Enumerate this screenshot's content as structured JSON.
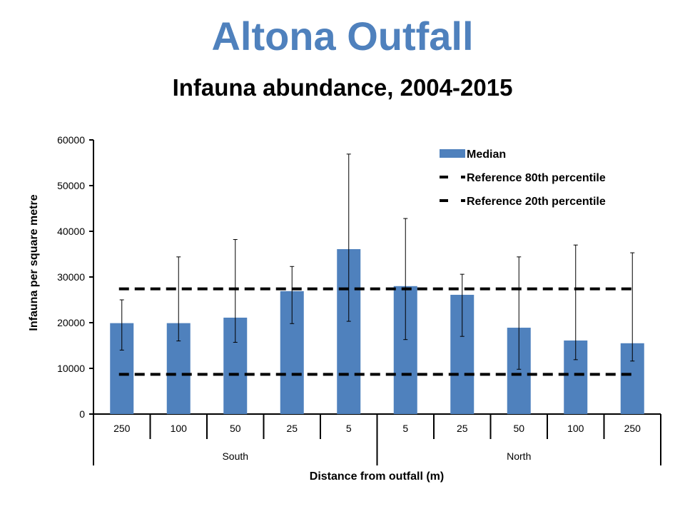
{
  "page": {
    "title": "Altona Outfall",
    "subtitle": "Infauna abundance, 2004-2015"
  },
  "chart_data": {
    "type": "bar",
    "categories": [
      "250",
      "100",
      "50",
      "25",
      "5",
      "5",
      "25",
      "50",
      "100",
      "250"
    ],
    "groups": [
      {
        "label": "South",
        "start": 0,
        "end": 4
      },
      {
        "label": "North",
        "start": 5,
        "end": 9
      }
    ],
    "series": [
      {
        "name": "Median",
        "values": [
          19900,
          19900,
          21100,
          26900,
          36100,
          28000,
          26100,
          18900,
          16100,
          15500
        ],
        "error_low": [
          14000,
          16000,
          15700,
          19800,
          20300,
          16300,
          17000,
          9800,
          11900,
          11600
        ],
        "error_high": [
          25000,
          34400,
          38200,
          32300,
          56900,
          42800,
          30600,
          34400,
          37000,
          35300
        ],
        "color": "#4f81bd"
      }
    ],
    "reference_lines": [
      {
        "name": "Reference 80th percentile",
        "value": 27400,
        "style": "dashed",
        "color": "#000000"
      },
      {
        "name": "Reference 20th percentile",
        "value": 8700,
        "style": "dashed",
        "color": "#000000"
      }
    ],
    "xlabel": "Distance from outfall (m)",
    "ylabel": "Infauna per square metre",
    "ylim": [
      0,
      60000
    ],
    "yticks": [
      0,
      10000,
      20000,
      30000,
      40000,
      50000,
      60000
    ],
    "grid": false,
    "legend_position": "top-right"
  }
}
